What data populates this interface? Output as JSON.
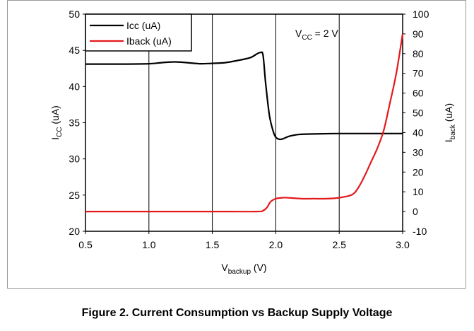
{
  "caption": "Figure 2. Current Consumption vs Backup Supply Voltage",
  "annotation": {
    "text_main": "V",
    "text_sub": "CC",
    "text_tail": " = 2 V"
  },
  "chart_data": {
    "type": "line",
    "xlabel": {
      "main": "V",
      "sub": "backup",
      "tail": " (V)"
    },
    "ylabel_left": {
      "main": "I",
      "sub": "CC",
      "tail": " (uA)"
    },
    "ylabel_right": {
      "main": "I",
      "sub": "back",
      "tail": " (uA)"
    },
    "xlim": [
      0.5,
      3.0
    ],
    "xticks": [
      "0.5",
      "1.0",
      "1.5",
      "2.0",
      "2.5",
      "3.0"
    ],
    "xtick_values": [
      0.5,
      1.0,
      1.5,
      2.0,
      2.5,
      3.0
    ],
    "ylim_left": [
      20,
      50
    ],
    "yticks_left": [
      "20",
      "25",
      "30",
      "35",
      "40",
      "45",
      "50"
    ],
    "ytick_values_left": [
      20,
      25,
      30,
      35,
      40,
      45,
      50
    ],
    "ylim_right": [
      -10,
      100
    ],
    "yticks_right": [
      "-10",
      "0",
      "10",
      "20",
      "30",
      "40",
      "50",
      "60",
      "70",
      "80",
      "90",
      "100"
    ],
    "ytick_values_right": [
      -10,
      0,
      10,
      20,
      30,
      40,
      50,
      60,
      70,
      80,
      90,
      100
    ],
    "grid": "vertical",
    "legend_position": "top-left",
    "series": [
      {
        "name": "Icc (uA)",
        "axis": "left",
        "color": "#000000",
        "x": [
          0.5,
          0.8,
          1.0,
          1.1,
          1.2,
          1.3,
          1.4,
          1.5,
          1.6,
          1.7,
          1.8,
          1.85,
          1.88,
          1.9,
          1.92,
          1.95,
          1.98,
          2.0,
          2.03,
          2.06,
          2.1,
          2.15,
          2.2,
          2.3,
          2.5,
          2.7,
          3.0
        ],
        "y": [
          43.1,
          43.1,
          43.15,
          43.3,
          43.4,
          43.3,
          43.15,
          43.2,
          43.3,
          43.6,
          44.0,
          44.5,
          44.7,
          44.3,
          40.5,
          36.0,
          33.8,
          33.0,
          32.7,
          32.8,
          33.1,
          33.3,
          33.4,
          33.45,
          33.5,
          33.5,
          33.5
        ]
      },
      {
        "name": "Iback (uA)",
        "axis": "right",
        "color": "#e41a1c",
        "x": [
          0.5,
          1.0,
          1.5,
          1.85,
          1.9,
          1.93,
          1.96,
          2.0,
          2.05,
          2.1,
          2.2,
          2.3,
          2.4,
          2.5,
          2.6,
          2.65,
          2.7,
          2.75,
          2.8,
          2.85,
          2.9,
          2.95,
          3.0
        ],
        "y": [
          0,
          0,
          0,
          0,
          0.5,
          2.0,
          5.0,
          6.5,
          7.0,
          7.0,
          6.5,
          6.5,
          6.5,
          7.0,
          8.5,
          12.0,
          18.0,
          25.0,
          32.0,
          41.0,
          55.0,
          70.0,
          90.0
        ]
      }
    ]
  }
}
